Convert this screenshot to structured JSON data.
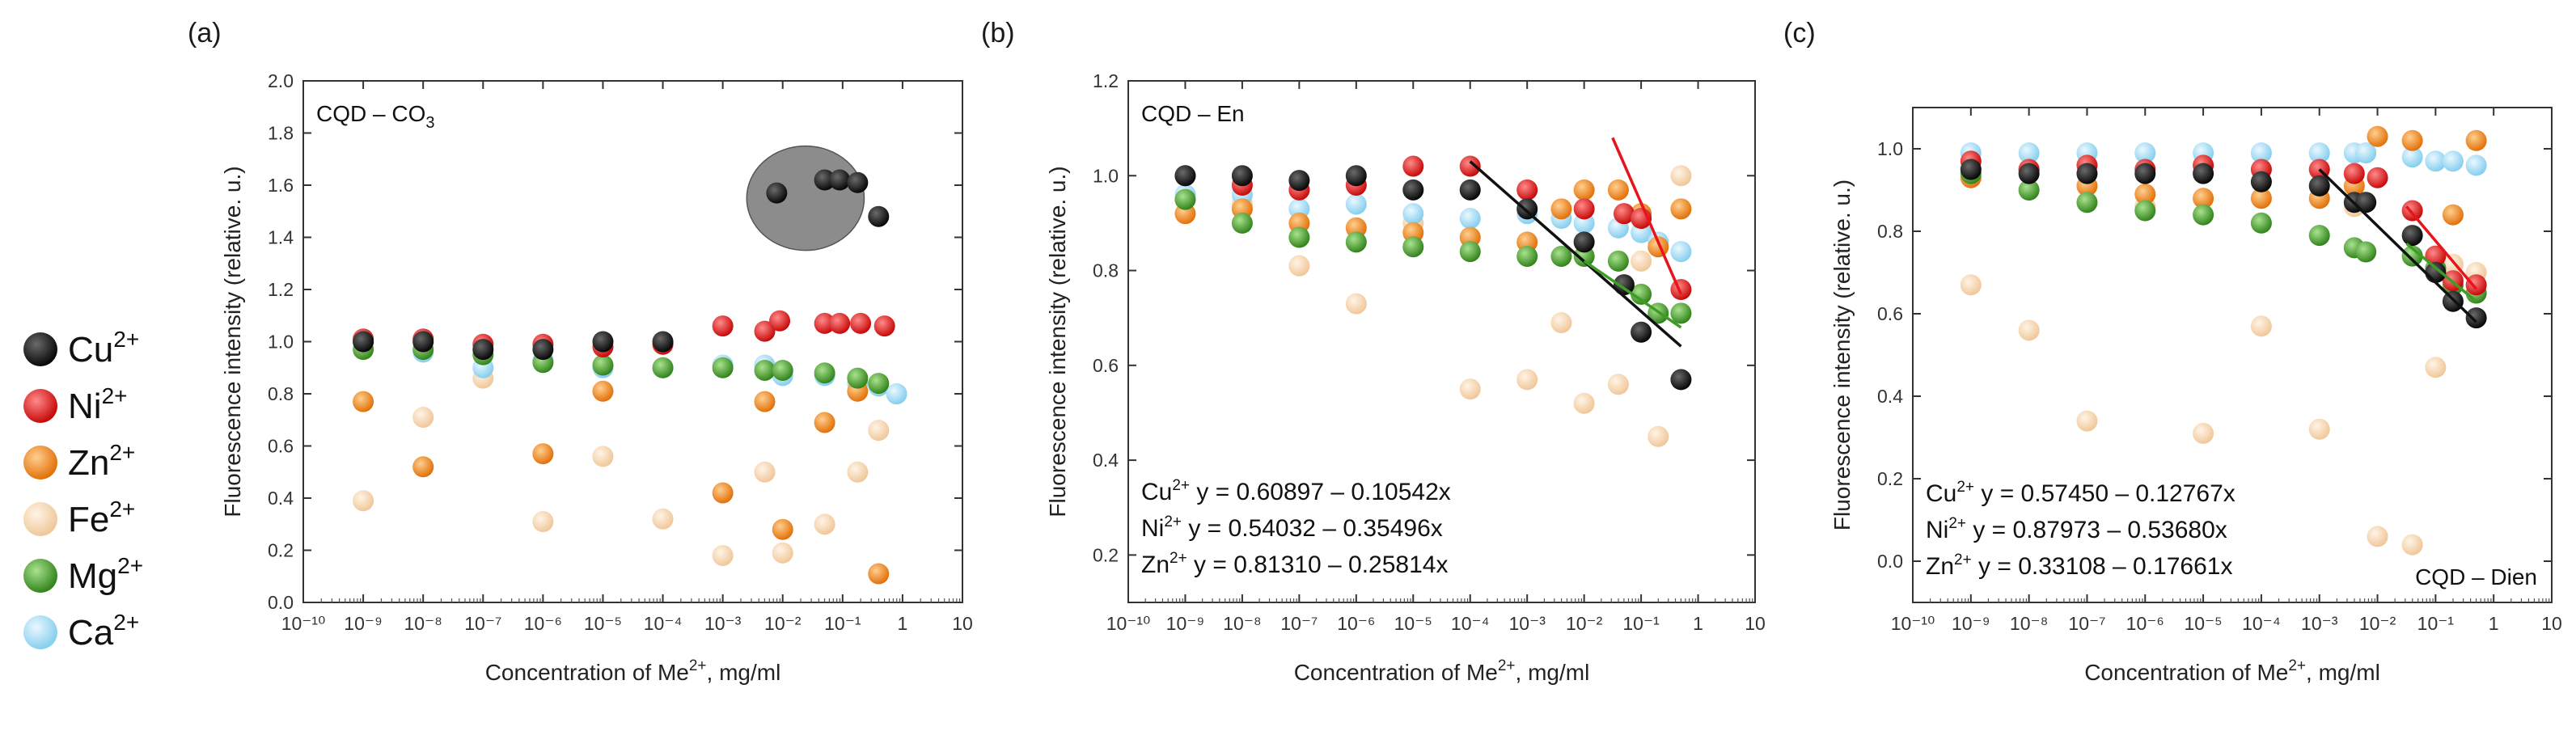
{
  "figure": {
    "legend": [
      {
        "label": "Cu",
        "sup": "2+",
        "color": "#111111"
      },
      {
        "label": "Ni",
        "sup": "2+",
        "color": "#e8141b"
      },
      {
        "label": "Zn",
        "sup": "2+",
        "color": "#f5891f"
      },
      {
        "label": "Fe",
        "sup": "2+",
        "color": "#f8d9b4"
      },
      {
        "label": "Mg",
        "sup": "2+",
        "color": "#3e9c26"
      },
      {
        "label": "Ca",
        "sup": "2+",
        "color": "#9fdcf6"
      }
    ]
  },
  "chart_data": [
    {
      "panel": "(a)",
      "type": "scatter",
      "inset_label": "CQD – CO",
      "inset_sub": "3",
      "xlabel": "Concentration of Me",
      "xlabel_sup": "2+",
      "xlabel_suffix": ", mg/ml",
      "ylabel": "Fluorescence intensity (relative. u.)",
      "xscale": "log",
      "xlim_exp": [
        -10,
        1
      ],
      "xticks": [
        "10⁻¹⁰",
        "10⁻⁹",
        "10⁻⁸",
        "10⁻⁷",
        "10⁻⁶",
        "10⁻⁵",
        "10⁻⁴",
        "10⁻³",
        "10⁻²",
        "10⁻¹",
        "1",
        "10"
      ],
      "ylim": [
        0.0,
        2.0
      ],
      "yticks": [
        "0.0",
        "0.2",
        "0.4",
        "0.6",
        "0.8",
        "1.0",
        "1.2",
        "1.4",
        "1.6",
        "1.8",
        "2.0"
      ],
      "highlight_ellipse": {
        "x_exp": -1.62,
        "y": 1.55,
        "rx_dec": 0.98,
        "ry": 0.2,
        "color": "#8c8c8c"
      },
      "series": [
        {
          "name": "Cu",
          "x_exp": [
            -9,
            -8,
            -7,
            -6,
            -5,
            -4,
            -2.1,
            -1.3,
            -1.05,
            -0.75,
            -0.4
          ],
          "values": [
            1.0,
            1.0,
            0.97,
            0.97,
            1.0,
            1.0,
            1.57,
            1.62,
            1.62,
            1.61,
            1.48
          ]
        },
        {
          "name": "Ni",
          "x_exp": [
            -9,
            -8,
            -7,
            -6,
            -5,
            -4,
            -3,
            -2.3,
            -2.05,
            -1.3,
            -1.05,
            -0.7,
            -0.3
          ],
          "values": [
            1.01,
            1.01,
            0.99,
            0.99,
            0.98,
            0.99,
            1.06,
            1.04,
            1.08,
            1.07,
            1.07,
            1.07,
            1.06
          ]
        },
        {
          "name": "Zn",
          "x_exp": [
            -9,
            -8,
            -6,
            -5,
            -3,
            -2.3,
            -2.0,
            -1.3,
            -0.75,
            -0.4
          ],
          "values": [
            0.77,
            0.52,
            0.57,
            0.81,
            0.42,
            0.77,
            0.28,
            0.69,
            0.81,
            0.11
          ]
        },
        {
          "name": "Fe",
          "x_exp": [
            -9,
            -8,
            -7,
            -6,
            -5,
            -4,
            -3,
            -2.3,
            -2.0,
            -1.3,
            -0.75,
            -0.4,
            -0.1
          ],
          "values": [
            0.39,
            0.71,
            0.86,
            0.31,
            0.56,
            0.32,
            0.18,
            0.5,
            0.19,
            0.3,
            0.5,
            0.66,
            0.8
          ]
        },
        {
          "name": "Mg",
          "x_exp": [
            -9,
            -8,
            -7,
            -6,
            -5,
            -4,
            -3,
            -2.3,
            -2.0,
            -1.3,
            -0.75,
            -0.4
          ],
          "values": [
            0.97,
            0.97,
            0.95,
            0.92,
            0.91,
            0.9,
            0.9,
            0.89,
            0.89,
            0.88,
            0.86,
            0.84
          ]
        },
        {
          "name": "Ca",
          "x_exp": [
            -9,
            -8,
            -7,
            -6,
            -5,
            -4,
            -3,
            -2.3,
            -2.0,
            -1.3,
            -0.75,
            -0.4,
            -0.1
          ],
          "values": [
            1.0,
            0.96,
            0.9,
            0.93,
            0.9,
            0.9,
            0.91,
            0.91,
            0.87,
            0.87,
            0.84,
            0.83,
            0.8
          ]
        }
      ]
    },
    {
      "panel": "(b)",
      "type": "scatter",
      "inset_label": "CQD – En",
      "xlabel": "Concentration of Me",
      "xlabel_sup": "2+",
      "xlabel_suffix": ", mg/ml",
      "ylabel": "Fluorescence intensity (relative. u.)",
      "xscale": "log",
      "xlim_exp": [
        -10,
        1
      ],
      "xticks": [
        "10⁻¹⁰",
        "10⁻⁹",
        "10⁻⁸",
        "10⁻⁷",
        "10⁻⁶",
        "10⁻⁵",
        "10⁻⁴",
        "10⁻³",
        "10⁻²",
        "10⁻¹",
        "1",
        "10"
      ],
      "ylim": [
        0.1,
        1.2
      ],
      "yticks": [
        "0.2",
        "0.4",
        "0.6",
        "0.8",
        "1.0",
        "1.2"
      ],
      "equations": [
        {
          "ion": "Cu",
          "sup": "2+",
          "text": "y = 0.60897 – 0.10542x"
        },
        {
          "ion": "Ni",
          "sup": "2+",
          "text": "y = 0.54032 – 0.35496x"
        },
        {
          "ion": "Zn",
          "sup": "2+",
          "text": "y = 0.81310 – 0.25814x"
        }
      ],
      "fit_lines": [
        {
          "name": "Cu",
          "x_exp": [
            -4,
            -0.3
          ],
          "values": [
            1.03,
            0.64
          ],
          "color": "#111111"
        },
        {
          "name": "Ni",
          "x_exp": [
            -1.5,
            -0.3
          ],
          "values": [
            1.08,
            0.75
          ],
          "color": "#e8141b"
        },
        {
          "name": "Mg",
          "x_exp": [
            -2,
            -0.3
          ],
          "values": [
            0.82,
            0.68
          ],
          "color": "#3e9c26"
        }
      ],
      "series": [
        {
          "name": "Cu",
          "x_exp": [
            -9,
            -8,
            -7,
            -6,
            -5,
            -4,
            -3,
            -2,
            -1.3,
            -1.0,
            -0.3
          ],
          "values": [
            1.0,
            1.0,
            0.99,
            1.0,
            0.97,
            0.97,
            0.93,
            0.86,
            0.77,
            0.67,
            0.57
          ]
        },
        {
          "name": "Ni",
          "x_exp": [
            -9,
            -8,
            -7,
            -6,
            -5,
            -4,
            -3,
            -2,
            -1.3,
            -1.0,
            -0.3
          ],
          "values": [
            1.0,
            0.98,
            0.97,
            0.98,
            1.02,
            1.02,
            0.97,
            0.93,
            0.92,
            0.91,
            0.76
          ]
        },
        {
          "name": "Zn",
          "x_exp": [
            -9,
            -8,
            -7,
            -6,
            -5,
            -4,
            -3,
            -2.4,
            -2.0,
            -1.4,
            -1.0,
            -0.7,
            -0.3
          ],
          "values": [
            0.92,
            0.93,
            0.9,
            0.89,
            0.88,
            0.87,
            0.86,
            0.93,
            0.97,
            0.97,
            0.92,
            0.85,
            0.93
          ]
        },
        {
          "name": "Fe",
          "x_exp": [
            -9,
            -8,
            -7,
            -6,
            -5,
            -4,
            -3,
            -2.4,
            -2.0,
            -1.4,
            -1.0,
            -0.7,
            -0.3
          ],
          "values": [
            0.95,
            0.94,
            0.81,
            0.73,
            0.9,
            0.55,
            0.57,
            0.69,
            0.52,
            0.56,
            0.82,
            0.45,
            1.0
          ]
        },
        {
          "name": "Mg",
          "x_exp": [
            -9,
            -8,
            -7,
            -6,
            -5,
            -4,
            -3,
            -2.4,
            -2.0,
            -1.4,
            -1.0,
            -0.7,
            -0.3
          ],
          "values": [
            0.95,
            0.9,
            0.87,
            0.86,
            0.85,
            0.84,
            0.83,
            0.83,
            0.83,
            0.82,
            0.75,
            0.71,
            0.71
          ]
        },
        {
          "name": "Ca",
          "x_exp": [
            -9,
            -8,
            -7,
            -6,
            -5,
            -4,
            -3,
            -2.4,
            -2.0,
            -1.4,
            -1.0,
            -0.7,
            -0.3
          ],
          "values": [
            0.96,
            0.96,
            0.93,
            0.94,
            0.92,
            0.91,
            0.92,
            0.91,
            0.9,
            0.89,
            0.88,
            0.86,
            0.84
          ]
        }
      ]
    },
    {
      "panel": "(c)",
      "type": "scatter",
      "inset_label": "CQD – Dien",
      "xlabel": "Concentration of Me",
      "xlabel_sup": "2+",
      "xlabel_suffix": ", mg/ml",
      "ylabel": "Fluorescence intensity (relative. u.)",
      "xscale": "log",
      "xlim_exp": [
        -10,
        1
      ],
      "xticks": [
        "10⁻¹⁰",
        "10⁻⁹",
        "10⁻⁸",
        "10⁻⁷",
        "10⁻⁶",
        "10⁻⁵",
        "10⁻⁴",
        "10⁻³",
        "10⁻²",
        "10⁻¹",
        "1",
        "10"
      ],
      "ylim": [
        -0.1,
        1.1
      ],
      "yticks": [
        "0.0",
        "0.2",
        "0.4",
        "0.6",
        "0.8",
        "1.0"
      ],
      "equations": [
        {
          "ion": "Cu",
          "sup": "2+",
          "text": "y = 0.57450 – 0.12767x"
        },
        {
          "ion": "Ni",
          "sup": "2+",
          "text": "y = 0.87973 – 0.53680x"
        },
        {
          "ion": "Zn",
          "sup": "2+",
          "text": "y = 0.33108 – 0.17661x"
        }
      ],
      "fit_lines": [
        {
          "name": "Cu",
          "x_exp": [
            -3,
            -0.3
          ],
          "values": [
            0.95,
            0.58
          ],
          "color": "#111111"
        },
        {
          "name": "Ni",
          "x_exp": [
            -1.5,
            -0.3
          ],
          "values": [
            0.86,
            0.66
          ],
          "color": "#e8141b"
        },
        {
          "name": "Mg",
          "x_exp": [
            -1.5,
            -0.3
          ],
          "values": [
            0.77,
            0.63
          ],
          "color": "#3e9c26"
        }
      ],
      "series": [
        {
          "name": "Cu",
          "x_exp": [
            -9,
            -8,
            -7,
            -6,
            -5,
            -4,
            -3,
            -2.4,
            -2.2,
            -1.4,
            -1.0,
            -0.7,
            -0.3
          ],
          "values": [
            0.95,
            0.94,
            0.94,
            0.94,
            0.94,
            0.92,
            0.91,
            0.87,
            0.87,
            0.79,
            0.7,
            0.63,
            0.59
          ]
        },
        {
          "name": "Ni",
          "x_exp": [
            -9,
            -8,
            -7,
            -6,
            -5,
            -4,
            -3,
            -2.4,
            -2.0,
            -1.4,
            -1.0,
            -0.7,
            -0.3
          ],
          "values": [
            0.97,
            0.95,
            0.96,
            0.95,
            0.96,
            0.95,
            0.95,
            0.94,
            0.93,
            0.85,
            0.74,
            0.68,
            0.67
          ]
        },
        {
          "name": "Zn",
          "x_exp": [
            -9,
            -8,
            -7,
            -6,
            -5,
            -4,
            -3,
            -2.4,
            -2.0,
            -1.4,
            -0.7,
            -0.3
          ],
          "values": [
            0.93,
            0.95,
            0.91,
            0.89,
            0.88,
            0.88,
            0.88,
            0.91,
            1.03,
            1.02,
            0.84,
            1.02
          ]
        },
        {
          "name": "Fe",
          "x_exp": [
            -9,
            -8,
            -7,
            -6,
            -5,
            -4,
            -3,
            -2.4,
            -2.0,
            -1.4,
            -1.0,
            -0.7,
            -0.3
          ],
          "values": [
            0.67,
            0.56,
            0.34,
            0.86,
            0.31,
            0.57,
            0.32,
            0.86,
            0.06,
            0.04,
            0.47,
            0.72,
            0.7
          ]
        },
        {
          "name": "Mg",
          "x_exp": [
            -9,
            -8,
            -7,
            -6,
            -5,
            -4,
            -3,
            -2.4,
            -2.2,
            -1.4,
            -1.0,
            -0.7,
            -0.3
          ],
          "values": [
            0.94,
            0.9,
            0.87,
            0.85,
            0.84,
            0.82,
            0.79,
            0.76,
            0.75,
            0.74,
            0.71,
            0.67,
            0.65
          ]
        },
        {
          "name": "Ca",
          "x_exp": [
            -9,
            -8,
            -7,
            -6,
            -5,
            -4,
            -3,
            -2.4,
            -2.2,
            -1.4,
            -1.0,
            -0.7,
            -0.3
          ],
          "values": [
            0.99,
            0.99,
            0.99,
            0.99,
            0.99,
            0.99,
            0.99,
            0.99,
            0.99,
            0.98,
            0.97,
            0.97,
            0.96
          ]
        }
      ]
    }
  ]
}
